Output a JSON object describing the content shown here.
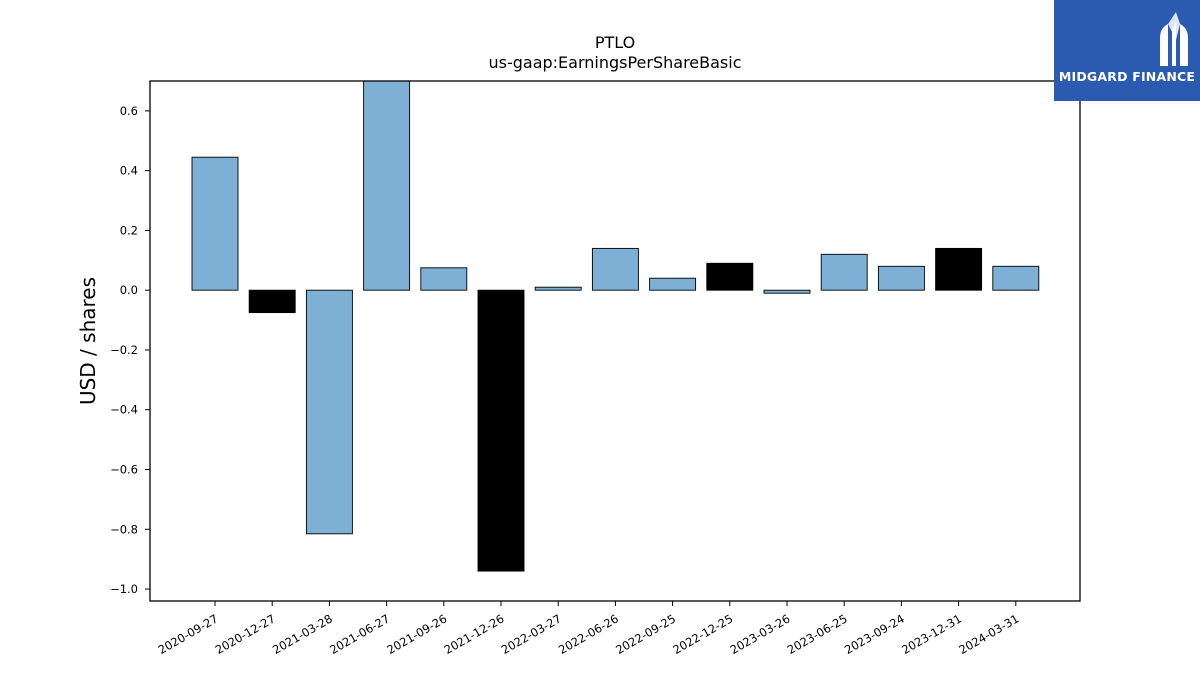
{
  "chart_data": {
    "type": "bar",
    "title": "PTLO",
    "subtitle": "us-gaap:EarningsPerShareBasic",
    "xlabel": "",
    "ylabel": "USD / shares",
    "ylim": [
      -1.04,
      0.7
    ],
    "yticks": [
      0.6,
      0.4,
      0.2,
      0.0,
      -0.2,
      -0.4,
      -0.6,
      -0.8,
      -1.0
    ],
    "ytick_labels": [
      "0.6",
      "0.4",
      "0.2",
      "0.0",
      "−0.2",
      "−0.4",
      "−0.6",
      "−0.8",
      "−1.0"
    ],
    "grid": false,
    "categories": [
      "2020-09-27",
      "2020-12-27",
      "2021-03-28",
      "2021-06-27",
      "2021-09-26",
      "2021-12-26",
      "2022-03-27",
      "2022-06-26",
      "2022-09-25",
      "2022-12-25",
      "2023-03-26",
      "2023-06-25",
      "2023-09-24",
      "2023-12-31",
      "2024-03-31"
    ],
    "values": [
      0.445,
      -0.075,
      -0.815,
      0.7,
      0.075,
      -0.94,
      0.01,
      0.14,
      0.04,
      0.09,
      -0.01,
      0.12,
      0.08,
      0.14,
      0.08
    ],
    "bar_colors": [
      "#7eb0d5",
      "#000000",
      "#7eb0d5",
      "#7eb0d5",
      "#7eb0d5",
      "#000000",
      "#7eb0d5",
      "#7eb0d5",
      "#7eb0d5",
      "#000000",
      "#7eb0d5",
      "#7eb0d5",
      "#7eb0d5",
      "#000000",
      "#7eb0d5"
    ]
  },
  "logo": {
    "text": "MIDGARD FINANCE",
    "background": "#2b5bb0",
    "icon": "midgard-m-logo-icon"
  }
}
